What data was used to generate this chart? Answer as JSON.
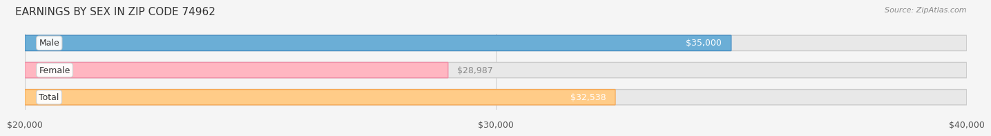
{
  "title": "EARNINGS BY SEX IN ZIP CODE 74962",
  "source": "Source: ZipAtlas.com",
  "categories": [
    "Male",
    "Female",
    "Total"
  ],
  "values": [
    35000,
    28987,
    32538
  ],
  "labels": [
    "$35,000",
    "$28,987",
    "$32,538"
  ],
  "bar_colors": [
    "#6baed6",
    "#ffb6c1",
    "#ffcc88"
  ],
  "bar_edge_colors": [
    "#4a90c4",
    "#f090a8",
    "#f5a855"
  ],
  "label_colors": [
    "#ffffff",
    "#888888",
    "#ffffff"
  ],
  "xlim": [
    20000,
    40000
  ],
  "xticks": [
    20000,
    30000,
    40000
  ],
  "xticklabels": [
    "$20,000",
    "$30,000",
    "$40,000"
  ],
  "background_color": "#f5f5f5",
  "bar_bg_color": "#e8e8e8",
  "title_fontsize": 11,
  "tick_fontsize": 9,
  "label_fontsize": 9,
  "category_fontsize": 9
}
